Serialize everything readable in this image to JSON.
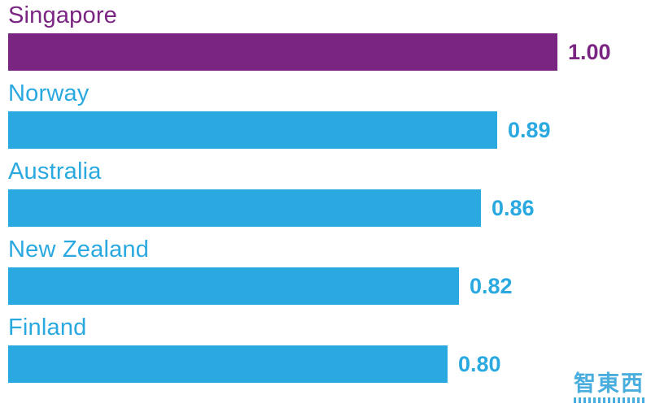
{
  "chart_data": {
    "type": "bar",
    "orientation": "horizontal",
    "title": "",
    "xlabel": "",
    "ylabel": "",
    "categories": [
      "Singapore",
      "Norway",
      "Australia",
      "New Zealand",
      "Finland"
    ],
    "values": [
      1.0,
      0.89,
      0.86,
      0.82,
      0.8
    ],
    "value_labels": [
      "1.00",
      "0.89",
      "0.86",
      "0.82",
      "0.80"
    ],
    "xlim": [
      0,
      1.0
    ],
    "grid": false,
    "legend": false,
    "highlight_index": 0,
    "colors": {
      "highlight": "#7b2583",
      "default": "#29a9e0"
    }
  },
  "watermark": {
    "text": "智東西",
    "color": "#2a9fd8"
  }
}
